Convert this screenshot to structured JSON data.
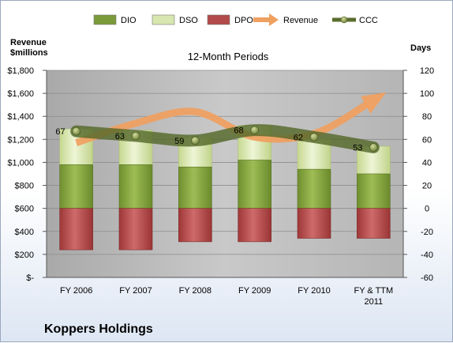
{
  "chart_data": {
    "type": "bar",
    "title": "12-Month Periods",
    "company": "Koppers Holdings",
    "left_axis_label_lines": [
      "Revenue",
      "$millions"
    ],
    "right_axis_label": "Days",
    "categories": [
      [
        "FY 2006"
      ],
      [
        "FY 2007"
      ],
      [
        "FY 2008"
      ],
      [
        "FY 2009"
      ],
      [
        "FY 2010"
      ],
      [
        "FY & TTM",
        "2011"
      ]
    ],
    "left_axis": {
      "min": 0,
      "max": 1800,
      "step": 200,
      "tick_labels": [
        "$-",
        "$200",
        "$400",
        "$600",
        "$800",
        "$1,000",
        "$1,200",
        "$1,400",
        "$1,600",
        "$1,800"
      ]
    },
    "right_axis": {
      "min": -60,
      "max": 120,
      "step": 20,
      "tick_labels": [
        "-60",
        "-40",
        "-20",
        "0",
        "20",
        "40",
        "60",
        "80",
        "100",
        "120"
      ]
    },
    "grid": true,
    "legend_position": "top",
    "legend": [
      {
        "name": "DIO",
        "kind": "bar",
        "color": "#7a9a3a"
      },
      {
        "name": "DSO",
        "kind": "bar",
        "color": "#d8e6b0"
      },
      {
        "name": "DPO",
        "kind": "bar",
        "color": "#b24a4a"
      },
      {
        "name": "Revenue",
        "kind": "arrow",
        "color": "#f0a060"
      },
      {
        "name": "CCC",
        "kind": "line",
        "color": "#5a6e2e"
      }
    ],
    "series": [
      {
        "name": "DIO",
        "axis": "right",
        "values": [
          38,
          38,
          36,
          42,
          34,
          30
        ]
      },
      {
        "name": "DSO",
        "axis": "right",
        "values": [
          31,
          30,
          26,
          30,
          26,
          24
        ]
      },
      {
        "name": "DPO",
        "axis": "right",
        "values": [
          -36,
          -36,
          -29,
          -29,
          -26,
          -26
        ]
      },
      {
        "name": "Revenue",
        "axis": "left",
        "values": [
          1170,
          1340,
          1440,
          1220,
          1250,
          1540
        ]
      },
      {
        "name": "CCC",
        "axis": "right",
        "values": [
          67,
          63,
          59,
          68,
          62,
          53
        ],
        "data_labels": [
          "67",
          "63",
          "59",
          "68",
          "62",
          "53"
        ]
      }
    ]
  }
}
